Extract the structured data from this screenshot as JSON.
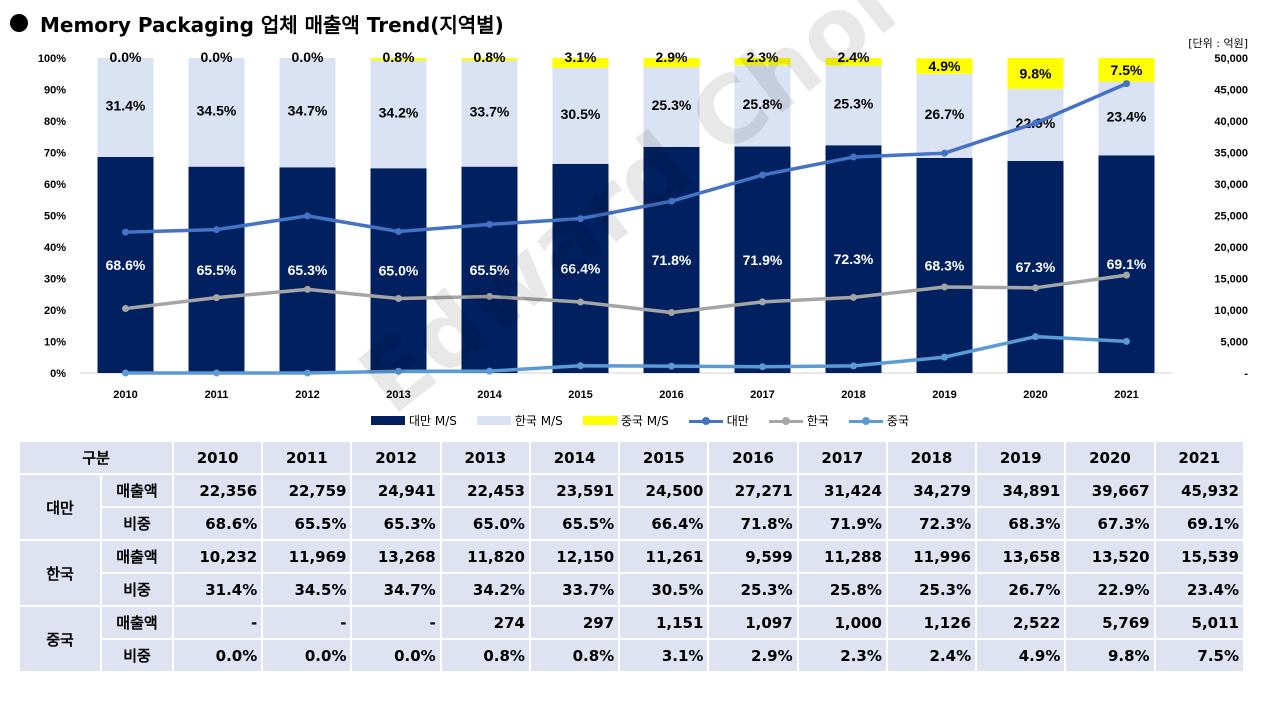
{
  "title": "Memory Packaging 업체 매출액 Trend(지역별)",
  "unit": "[단위 : 억원]",
  "watermark": "Edward Choi",
  "chart_data": {
    "type": "bar",
    "stacked": true,
    "categories": [
      "2010",
      "2011",
      "2012",
      "2013",
      "2014",
      "2015",
      "2016",
      "2017",
      "2018",
      "2019",
      "2020",
      "2021"
    ],
    "series": [
      {
        "name": "대만 M/S",
        "type": "bar",
        "color": "#002060",
        "values": [
          68.6,
          65.5,
          65.3,
          65.0,
          65.5,
          66.4,
          71.8,
          71.9,
          72.3,
          68.3,
          67.3,
          69.1
        ],
        "labels": [
          "68.6%",
          "65.5%",
          "65.3%",
          "65.0%",
          "65.5%",
          "66.4%",
          "71.8%",
          "71.9%",
          "72.3%",
          "68.3%",
          "67.3%",
          "69.1%"
        ]
      },
      {
        "name": "한국 M/S",
        "type": "bar",
        "color": "#dae3f3",
        "values": [
          31.4,
          34.5,
          34.7,
          34.2,
          33.7,
          30.5,
          25.3,
          25.8,
          25.3,
          26.7,
          22.9,
          23.4
        ],
        "labels": [
          "31.4%",
          "34.5%",
          "34.7%",
          "34.2%",
          "33.7%",
          "30.5%",
          "25.3%",
          "25.8%",
          "25.3%",
          "26.7%",
          "22.9%",
          "23.4%"
        ]
      },
      {
        "name": "중국 M/S",
        "type": "bar",
        "color": "#ffff00",
        "values": [
          0.0,
          0.0,
          0.0,
          0.8,
          0.8,
          3.1,
          2.9,
          2.3,
          2.4,
          4.9,
          9.8,
          7.5
        ],
        "labels": [
          "0.0%",
          "0.0%",
          "0.0%",
          "0.8%",
          "0.8%",
          "3.1%",
          "2.9%",
          "2.3%",
          "2.4%",
          "4.9%",
          "9.8%",
          "7.5%"
        ]
      },
      {
        "name": "대만",
        "type": "line",
        "axis": "right",
        "color": "#4472c4",
        "values": [
          22356,
          22759,
          24941,
          22453,
          23591,
          24500,
          27271,
          31424,
          34279,
          34891,
          39667,
          45932
        ]
      },
      {
        "name": "한국",
        "type": "line",
        "axis": "right",
        "color": "#a5a5a5",
        "values": [
          10232,
          11969,
          13268,
          11820,
          12150,
          11261,
          9599,
          11288,
          11996,
          13658,
          13520,
          15539
        ]
      },
      {
        "name": "중국",
        "type": "line",
        "axis": "right",
        "color": "#5b9bd5",
        "values": [
          0,
          0,
          0,
          274,
          297,
          1151,
          1097,
          1000,
          1126,
          2522,
          5769,
          5011
        ]
      }
    ],
    "ylim_left": [
      0,
      100
    ],
    "left_ticks": [
      "0%",
      "10%",
      "20%",
      "30%",
      "40%",
      "50%",
      "60%",
      "70%",
      "80%",
      "90%",
      "100%"
    ],
    "ylim_right": [
      0,
      50000
    ],
    "right_ticks": [
      "-",
      "5,000",
      "10,000",
      "15,000",
      "20,000",
      "25,000",
      "30,000",
      "35,000",
      "40,000",
      "45,000",
      "50,000"
    ],
    "legend_position": "bottom"
  },
  "table": {
    "header": [
      "구분",
      "2010",
      "2011",
      "2012",
      "2013",
      "2014",
      "2015",
      "2016",
      "2017",
      "2018",
      "2019",
      "2020",
      "2021"
    ],
    "groups": [
      {
        "name": "대만",
        "rows": [
          {
            "label": "매출액",
            "values": [
              "22,356",
              "22,759",
              "24,941",
              "22,453",
              "23,591",
              "24,500",
              "27,271",
              "31,424",
              "34,279",
              "34,891",
              "39,667",
              "45,932"
            ]
          },
          {
            "label": "비중",
            "values": [
              "68.6%",
              "65.5%",
              "65.3%",
              "65.0%",
              "65.5%",
              "66.4%",
              "71.8%",
              "71.9%",
              "72.3%",
              "68.3%",
              "67.3%",
              "69.1%"
            ]
          }
        ]
      },
      {
        "name": "한국",
        "rows": [
          {
            "label": "매출액",
            "values": [
              "10,232",
              "11,969",
              "13,268",
              "11,820",
              "12,150",
              "11,261",
              "9,599",
              "11,288",
              "11,996",
              "13,658",
              "13,520",
              "15,539"
            ]
          },
          {
            "label": "비중",
            "values": [
              "31.4%",
              "34.5%",
              "34.7%",
              "34.2%",
              "33.7%",
              "30.5%",
              "25.3%",
              "25.8%",
              "25.3%",
              "26.7%",
              "22.9%",
              "23.4%"
            ]
          }
        ]
      },
      {
        "name": "중국",
        "rows": [
          {
            "label": "매출액",
            "values": [
              "-",
              "-",
              "-",
              "274",
              "297",
              "1,151",
              "1,097",
              "1,000",
              "1,126",
              "2,522",
              "5,769",
              "5,011"
            ]
          },
          {
            "label": "비중",
            "values": [
              "0.0%",
              "0.0%",
              "0.0%",
              "0.8%",
              "0.8%",
              "3.1%",
              "2.9%",
              "2.3%",
              "2.4%",
              "4.9%",
              "9.8%",
              "7.5%"
            ]
          }
        ]
      }
    ]
  }
}
